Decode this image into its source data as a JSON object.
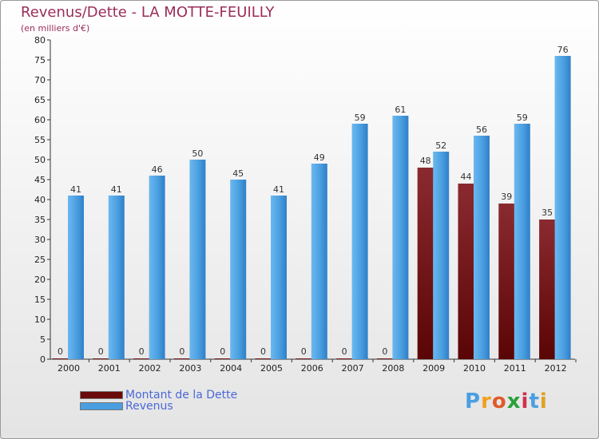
{
  "title": "Revenus/Dette - LA MOTTE-FEUILLY",
  "subtitle": "(en milliers d'€)",
  "logo": "Proxiti",
  "colors": {
    "dette": "#6b0a0a",
    "revenus": "#4a9fe0",
    "title": "#9b2c5a",
    "legend_text": "#4a68d8"
  },
  "chart_data": {
    "type": "bar",
    "categories": [
      "2000",
      "2001",
      "2002",
      "2003",
      "2004",
      "2005",
      "2006",
      "2007",
      "2008",
      "2009",
      "2010",
      "2011",
      "2012"
    ],
    "series": [
      {
        "name": "Montant de la Dette",
        "values": [
          0,
          0,
          0,
          0,
          0,
          0,
          0,
          0,
          0,
          48,
          44,
          39,
          35
        ]
      },
      {
        "name": "Revenus",
        "values": [
          41,
          41,
          46,
          50,
          45,
          41,
          49,
          59,
          61,
          52,
          56,
          59,
          76
        ]
      }
    ],
    "ylim": [
      0,
      80
    ],
    "yticks": [
      0,
      5,
      10,
      15,
      20,
      25,
      30,
      35,
      40,
      45,
      50,
      55,
      60,
      65,
      70,
      75,
      80
    ],
    "grid": false,
    "legend": "bottom-left"
  }
}
